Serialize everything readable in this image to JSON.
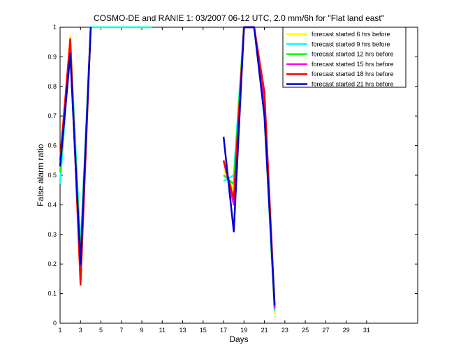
{
  "chart_data": {
    "type": "line",
    "title": "COSMO-DE and RANIE 1: 03/2007 06-12 UTC, 2.0 mm/6h for \"Flat land east\"",
    "xlabel": "Days",
    "ylabel": "False alarm ratio",
    "xlim": [
      1,
      36
    ],
    "ylim": [
      0,
      1
    ],
    "xticks": [
      1,
      3,
      5,
      7,
      9,
      11,
      13,
      15,
      17,
      19,
      21,
      23,
      25,
      27,
      29,
      31
    ],
    "yticks": [
      0,
      0.1,
      0.2,
      0.3,
      0.4,
      0.5,
      0.6,
      0.7,
      0.8,
      0.9,
      1
    ],
    "legend_position": "top-right",
    "series": [
      {
        "name": "forecast started 6 hrs before",
        "color": "#ffff00",
        "segments": [
          [
            [
              1,
              0.5
            ],
            [
              2,
              0.97
            ],
            [
              3,
              0.24
            ],
            [
              4,
              1.0
            ],
            [
              10,
              1.0
            ]
          ],
          [
            [
              17,
              0.52
            ],
            [
              18,
              0.45
            ],
            [
              19,
              1.0
            ],
            [
              20,
              1.0
            ],
            [
              21,
              0.7
            ],
            [
              22,
              0.03
            ]
          ]
        ]
      },
      {
        "name": "forecast started 9 hrs before",
        "color": "#00ffff",
        "segments": [
          [
            [
              1,
              0.47
            ],
            [
              2,
              0.95
            ],
            [
              3,
              0.25
            ],
            [
              4,
              1.0
            ],
            [
              10,
              1.0
            ]
          ],
          [
            [
              17,
              0.48
            ],
            [
              18,
              0.5
            ],
            [
              19,
              1.0
            ],
            [
              20,
              1.0
            ],
            [
              21,
              0.7
            ],
            [
              22,
              0.04
            ]
          ]
        ]
      },
      {
        "name": "forecast started 12 hrs before",
        "color": "#00ff00",
        "segments": [
          [
            [
              1,
              0.51
            ],
            [
              2,
              0.93
            ],
            [
              3,
              0.22
            ],
            [
              4,
              1.0
            ]
          ],
          [
            [
              17,
              0.5
            ],
            [
              18,
              0.47
            ],
            [
              19,
              1.0
            ],
            [
              20,
              1.0
            ],
            [
              21,
              0.72
            ],
            [
              22,
              0.05
            ]
          ]
        ]
      },
      {
        "name": "forecast started 15 hrs before",
        "color": "#ff00ff",
        "segments": [
          [
            [
              1,
              0.53
            ],
            [
              2,
              0.92
            ],
            [
              3,
              0.18
            ],
            [
              4,
              1.0
            ]
          ],
          [
            [
              17,
              0.55
            ],
            [
              18,
              0.4
            ],
            [
              19,
              1.0
            ],
            [
              20,
              1.0
            ],
            [
              21,
              0.75
            ],
            [
              22,
              0.05
            ]
          ]
        ]
      },
      {
        "name": "forecast started 18 hrs before",
        "color": "#ff0000",
        "segments": [
          [
            [
              1,
              0.55
            ],
            [
              2,
              0.96
            ],
            [
              3,
              0.13
            ],
            [
              4,
              1.0
            ]
          ],
          [
            [
              17,
              0.55
            ],
            [
              18,
              0.42
            ],
            [
              19,
              1.0
            ],
            [
              20,
              1.0
            ],
            [
              21,
              0.78
            ],
            [
              22,
              0.06
            ]
          ]
        ]
      },
      {
        "name": "forecast started 21 hrs before",
        "color": "#0000cd",
        "segments": [
          [
            [
              1,
              0.53
            ],
            [
              2,
              0.91
            ],
            [
              3,
              0.2
            ],
            [
              4,
              1.0
            ]
          ],
          [
            [
              17,
              0.63
            ],
            [
              18,
              0.31
            ],
            [
              19,
              1.0
            ],
            [
              20,
              1.0
            ],
            [
              21,
              0.7
            ],
            [
              22,
              0.06
            ]
          ]
        ]
      }
    ]
  }
}
